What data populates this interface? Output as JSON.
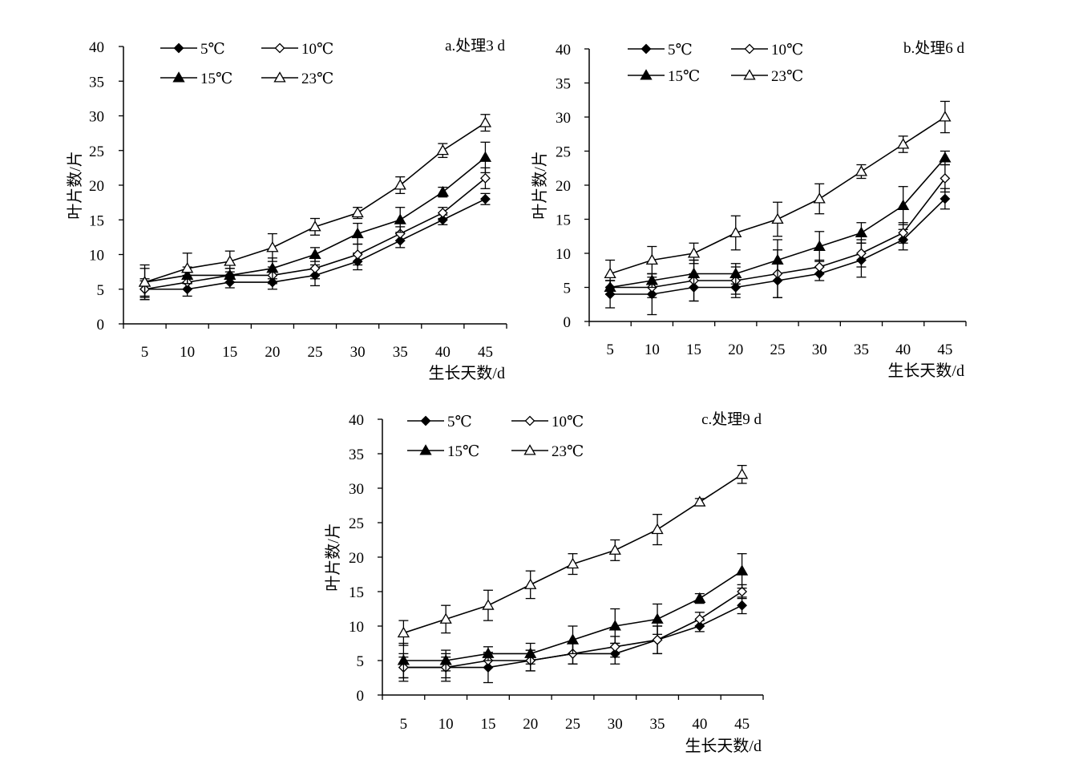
{
  "chart_data": [
    {
      "type": "line",
      "title": "a.处理3 d",
      "xlabel": "生长天数/d",
      "ylabel": "叶片数/片",
      "x": [
        5,
        10,
        15,
        20,
        25,
        30,
        35,
        40,
        45
      ],
      "ylim": [
        0,
        40
      ],
      "yticks": [
        0,
        5,
        10,
        15,
        20,
        25,
        30,
        35,
        40
      ],
      "series": [
        {
          "name": "5℃",
          "marker": "diamond-filled",
          "values": [
            5,
            5,
            6,
            6,
            7,
            9,
            12,
            15,
            18
          ],
          "errors": [
            1.2,
            1.0,
            0.8,
            1.0,
            1.5,
            1.2,
            1.0,
            0.7,
            0.8
          ]
        },
        {
          "name": "10℃",
          "marker": "diamond-open",
          "values": [
            5,
            6,
            7,
            7,
            8,
            10,
            13,
            16,
            21
          ],
          "errors": [
            1.5,
            1.0,
            1.0,
            1.2,
            1.5,
            1.5,
            1.0,
            0.8,
            1.5
          ]
        },
        {
          "name": "15℃",
          "marker": "triangle-filled",
          "values": [
            6,
            7,
            7,
            8,
            10,
            13,
            15,
            19,
            24
          ],
          "errors": [
            2.5,
            1.2,
            1.0,
            1.5,
            1.0,
            1.5,
            1.8,
            0.7,
            2.2
          ]
        },
        {
          "name": "23℃",
          "marker": "triangle-open",
          "values": [
            6,
            8,
            9,
            11,
            14,
            16,
            20,
            25,
            29
          ],
          "errors": [
            2.0,
            2.2,
            1.5,
            2.0,
            1.2,
            0.8,
            1.2,
            1.0,
            1.2
          ]
        }
      ]
    },
    {
      "type": "line",
      "title": "b.处理6 d",
      "xlabel": "生长天数/d",
      "ylabel": "叶片数/片",
      "x": [
        5,
        10,
        15,
        20,
        25,
        30,
        35,
        40,
        45
      ],
      "ylim": [
        0,
        40
      ],
      "yticks": [
        0,
        5,
        10,
        15,
        20,
        25,
        30,
        35,
        40
      ],
      "series": [
        {
          "name": "5℃",
          "marker": "diamond-filled",
          "values": [
            4,
            4,
            5,
            5,
            6,
            7,
            9,
            12,
            18
          ],
          "errors": [
            2.0,
            3.0,
            2.0,
            1.5,
            2.5,
            1.0,
            2.5,
            1.5,
            1.5
          ]
        },
        {
          "name": "10℃",
          "marker": "diamond-open",
          "values": [
            5,
            5,
            6,
            6,
            7,
            8,
            10,
            13,
            21
          ],
          "errors": [
            1.0,
            1.5,
            3.0,
            2.0,
            3.5,
            1.0,
            2.0,
            1.5,
            2.0
          ]
        },
        {
          "name": "15℃",
          "marker": "triangle-filled",
          "values": [
            5,
            6,
            7,
            7,
            9,
            11,
            13,
            17,
            24
          ],
          "errors": [
            1.0,
            1.0,
            2.0,
            1.5,
            3.0,
            2.2,
            1.5,
            2.8,
            1.0
          ]
        },
        {
          "name": "23℃",
          "marker": "triangle-open",
          "values": [
            7,
            9,
            10,
            13,
            15,
            18,
            22,
            26,
            30
          ],
          "errors": [
            2.0,
            2.0,
            1.5,
            2.5,
            2.5,
            2.2,
            1.0,
            1.2,
            2.3
          ]
        }
      ]
    },
    {
      "type": "line",
      "title": "c.处理9 d",
      "xlabel": "生长天数/d",
      "ylabel": "叶片数/片",
      "x": [
        5,
        10,
        15,
        20,
        25,
        30,
        35,
        40,
        45
      ],
      "ylim": [
        0,
        40
      ],
      "yticks": [
        0,
        5,
        10,
        15,
        20,
        25,
        30,
        35,
        40
      ],
      "series": [
        {
          "name": "5℃",
          "marker": "diamond-filled",
          "values": [
            4,
            4,
            4,
            5,
            6,
            6,
            8,
            10,
            13
          ],
          "errors": [
            1.5,
            1.5,
            2.2,
            1.5,
            1.5,
            1.5,
            2.0,
            0.8,
            1.2
          ]
        },
        {
          "name": "10℃",
          "marker": "diamond-open",
          "values": [
            4,
            4,
            5,
            5,
            6,
            7,
            8,
            11,
            15
          ],
          "errors": [
            2.0,
            2.0,
            1.0,
            1.5,
            1.5,
            1.5,
            2.0,
            1.0,
            1.0
          ]
        },
        {
          "name": "15℃",
          "marker": "triangle-filled",
          "values": [
            5,
            5,
            6,
            6,
            8,
            10,
            11,
            14,
            18
          ],
          "errors": [
            2.5,
            1.5,
            1.0,
            1.5,
            2.0,
            2.5,
            2.2,
            0.7,
            2.5
          ]
        },
        {
          "name": "23℃",
          "marker": "triangle-open",
          "values": [
            9,
            11,
            13,
            16,
            19,
            21,
            24,
            28,
            32
          ],
          "errors": [
            1.8,
            2.0,
            2.2,
            2.0,
            1.5,
            1.5,
            2.2,
            0.5,
            1.3
          ]
        }
      ]
    }
  ]
}
